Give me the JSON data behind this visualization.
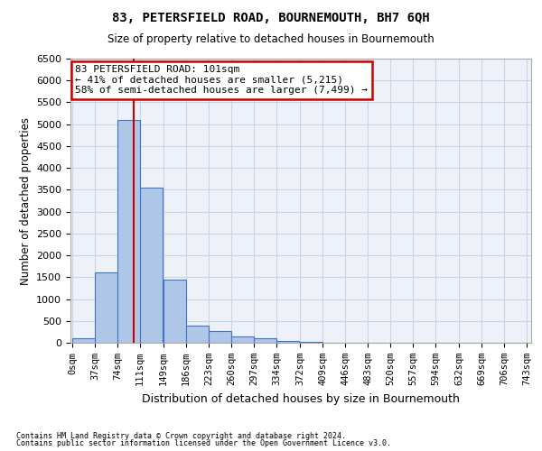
{
  "title": "83, PETERSFIELD ROAD, BOURNEMOUTH, BH7 6QH",
  "subtitle": "Size of property relative to detached houses in Bournemouth",
  "xlabel": "Distribution of detached houses by size in Bournemouth",
  "ylabel": "Number of detached properties",
  "annotation_line1": "83 PETERSFIELD ROAD: 101sqm",
  "annotation_line2": "← 41% of detached houses are smaller (5,215)",
  "annotation_line3": "58% of semi-detached houses are larger (7,499) →",
  "property_size": 101,
  "bin_edges": [
    0,
    37,
    74,
    111,
    149,
    186,
    223,
    260,
    297,
    334,
    372,
    409,
    446,
    483,
    520,
    557,
    594,
    632,
    669,
    706,
    743
  ],
  "bar_heights": [
    100,
    1600,
    5100,
    3550,
    1450,
    400,
    260,
    140,
    100,
    50,
    20,
    10,
    5,
    2,
    2,
    1,
    0,
    0,
    0,
    0
  ],
  "bar_color": "#aec6e8",
  "bar_edge_color": "#4472c4",
  "line_color": "#cc0000",
  "annotation_box_color": "#cc0000",
  "grid_color": "#c8d4e8",
  "background_color": "#eef2f8",
  "ylim": [
    0,
    6500
  ],
  "yticks": [
    0,
    500,
    1000,
    1500,
    2000,
    2500,
    3000,
    3500,
    4000,
    4500,
    5000,
    5500,
    6000,
    6500
  ],
  "x_tick_labels": [
    "0sqm",
    "37sqm",
    "74sqm",
    "111sqm",
    "149sqm",
    "186sqm",
    "223sqm",
    "260sqm",
    "297sqm",
    "334sqm",
    "372sqm",
    "409sqm",
    "446sqm",
    "483sqm",
    "520sqm",
    "557sqm",
    "594sqm",
    "632sqm",
    "669sqm",
    "706sqm",
    "743sqm"
  ],
  "footer_line1": "Contains HM Land Registry data © Crown copyright and database right 2024.",
  "footer_line2": "Contains public sector information licensed under the Open Government Licence v3.0."
}
